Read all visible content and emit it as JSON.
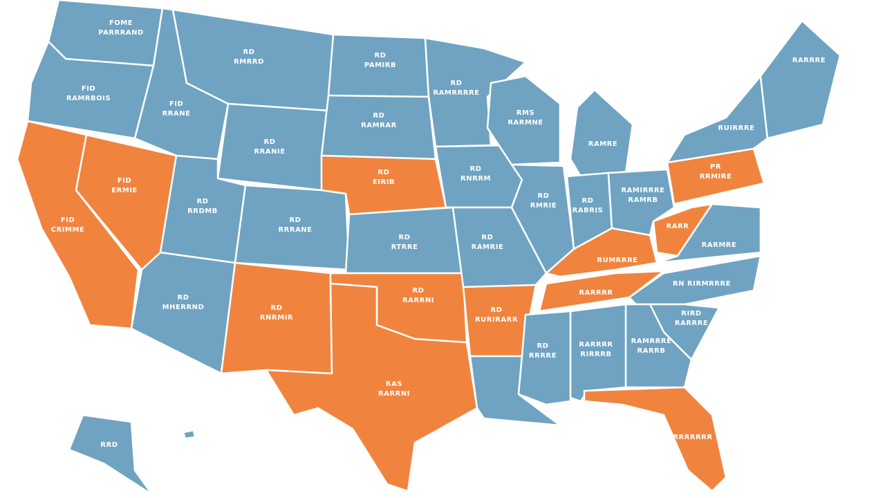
{
  "states": [
    {
      "labels": [
        "FOME",
        "PARRRAND"
      ],
      "color": "#6fa3c1"
    },
    {
      "labels": [
        "FID",
        "RAMRBOIS"
      ],
      "color": "#6fa3c1"
    },
    {
      "labels": [
        "FID",
        "CRIMME"
      ],
      "color": "#f0843f"
    },
    {
      "labels": [
        "FID",
        "ERMIE"
      ],
      "color": "#f0843f"
    },
    {
      "labels": [
        "FID",
        "RRANE"
      ],
      "color": "#6fa3c1"
    },
    {
      "labels": [
        "RD",
        "RMRRD"
      ],
      "color": "#6fa3c1"
    },
    {
      "labels": [
        "RD",
        "RRANIE"
      ],
      "color": "#6fa3c1"
    },
    {
      "labels": [
        "RD",
        "RRDMB"
      ],
      "color": "#6fa3c1"
    },
    {
      "labels": [
        "RD",
        "RRRANE"
      ],
      "color": "#6fa3c1"
    },
    {
      "labels": [
        "RD",
        "MHERRND"
      ],
      "color": "#6fa3c1"
    },
    {
      "labels": [
        "RD",
        "RNRMIR"
      ],
      "color": "#f0843f"
    },
    {
      "labels": [
        "RD",
        "PAMIRB"
      ],
      "color": "#6fa3c1"
    },
    {
      "labels": [
        "RD",
        "RAMRAR"
      ],
      "color": "#6fa3c1"
    },
    {
      "labels": [
        "RD",
        "EIRIB"
      ],
      "color": "#f0843f"
    },
    {
      "labels": [
        "RD",
        "RTRRE"
      ],
      "color": "#6fa3c1"
    },
    {
      "labels": [
        "RD",
        "RARRNI"
      ],
      "color": "#f0843f"
    },
    {
      "labels": [
        "RAS",
        "RARRNI"
      ],
      "color": "#f0843f"
    },
    {
      "labels": [
        "RD",
        "RAMRRRRE"
      ],
      "color": "#6fa3c1"
    },
    {
      "labels": [
        "RD",
        "RNRRM"
      ],
      "color": "#6fa3c1"
    },
    {
      "labels": [
        "RD",
        "RAMRIE"
      ],
      "color": "#6fa3c1"
    },
    {
      "labels": [
        "RD",
        "RURIRARR"
      ],
      "color": "#f0843f"
    },
    {
      "labels": [],
      "color": "#6fa3c1"
    },
    {
      "labels": [
        "RMS",
        "RARMNE"
      ],
      "color": "#6fa3c1"
    },
    {
      "labels": [
        "RD",
        "RMRIE"
      ],
      "color": "#6fa3c1"
    },
    {
      "labels": [
        "RAMRE"
      ],
      "color": "#6fa3c1"
    },
    {
      "labels": [
        "RD",
        "RABRIS"
      ],
      "color": "#6fa3c1"
    },
    {
      "labels": [
        "RAMIRRRE",
        "RAMRB"
      ],
      "color": "#6fa3c1"
    },
    {
      "labels": [
        "RUMRRRE"
      ],
      "color": "#f0843f"
    },
    {
      "labels": [
        "RARRRR"
      ],
      "color": "#f0843f"
    },
    {
      "labels": [
        "RARR"
      ],
      "color": "#f0843f"
    },
    {
      "labels": [
        "PR",
        "RRMIRE"
      ],
      "color": "#f0843f"
    },
    {
      "labels": [
        "RUIRRRE"
      ],
      "color": "#6fa3c1"
    },
    {
      "labels": [
        "RARRRE"
      ],
      "color": "#6fa3c1"
    },
    {
      "labels": [
        "RARMRE"
      ],
      "color": "#6fa3c1"
    },
    {
      "labels": [
        "RN RIRMRRRE"
      ],
      "color": "#6fa3c1"
    },
    {
      "labels": [
        "RIRD",
        "RARRRE"
      ],
      "color": "#6fa3c1"
    },
    {
      "labels": [
        "RAMRRRE",
        "RARRB"
      ],
      "color": "#6fa3c1"
    },
    {
      "labels": [
        "RARRRR",
        "RIRRRB"
      ],
      "color": "#6fa3c1"
    },
    {
      "labels": [
        "RD",
        "RRRRE"
      ],
      "color": "#6fa3c1"
    },
    {
      "labels": [
        "RRRRRRR"
      ],
      "color": "#f0843f"
    },
    {
      "labels": [
        "RRD"
      ],
      "color": "#6fa3c1"
    },
    {
      "labels": [],
      "color": "#6fa3c1"
    }
  ]
}
